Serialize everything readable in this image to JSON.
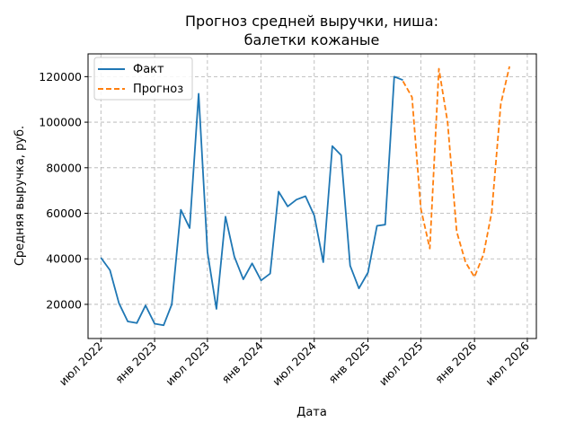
{
  "chart_data": {
    "type": "line",
    "title_lines": [
      "Прогноз средней выручки, ниша:",
      "балетки кожаные"
    ],
    "xlabel": "Дата",
    "ylabel": "Средняя выручка, руб.",
    "xlim": [
      "2022-05-18",
      "2026-08-01"
    ],
    "ylim": [
      5000,
      130000
    ],
    "x_ticks": [
      {
        "date": "2022-07-01",
        "label": "июл 2022"
      },
      {
        "date": "2023-01-01",
        "label": "янв 2023"
      },
      {
        "date": "2023-07-01",
        "label": "июл 2023"
      },
      {
        "date": "2024-01-01",
        "label": "янв 2024"
      },
      {
        "date": "2024-07-01",
        "label": "июл 2024"
      },
      {
        "date": "2025-01-01",
        "label": "янв 2025"
      },
      {
        "date": "2025-07-01",
        "label": "июл 2025"
      },
      {
        "date": "2026-01-01",
        "label": "янв 2026"
      },
      {
        "date": "2026-07-01",
        "label": "июл 2026"
      }
    ],
    "y_ticks": [
      20000,
      40000,
      60000,
      80000,
      100000,
      120000
    ],
    "grid": true,
    "legend_position": "top-left",
    "series": [
      {
        "name": "Факт",
        "style": "solid",
        "color": "#1f77b4",
        "points": [
          [
            "2022-07-01",
            40500
          ],
          [
            "2022-08-01",
            35000
          ],
          [
            "2022-09-01",
            20500
          ],
          [
            "2022-10-01",
            12500
          ],
          [
            "2022-11-01",
            11800
          ],
          [
            "2022-12-01",
            19500
          ],
          [
            "2023-01-01",
            11500
          ],
          [
            "2023-02-01",
            10800
          ],
          [
            "2023-03-01",
            20000
          ],
          [
            "2023-04-01",
            61500
          ],
          [
            "2023-05-01",
            53500
          ],
          [
            "2023-06-01",
            112500
          ],
          [
            "2023-07-01",
            43000
          ],
          [
            "2023-08-01",
            18000
          ],
          [
            "2023-09-01",
            58500
          ],
          [
            "2023-10-01",
            41000
          ],
          [
            "2023-11-01",
            31000
          ],
          [
            "2023-12-01",
            38000
          ],
          [
            "2024-01-01",
            30500
          ],
          [
            "2024-02-01",
            33500
          ],
          [
            "2024-03-01",
            69500
          ],
          [
            "2024-04-01",
            63000
          ],
          [
            "2024-05-01",
            66000
          ],
          [
            "2024-06-01",
            67500
          ],
          [
            "2024-07-01",
            59000
          ],
          [
            "2024-08-01",
            38500
          ],
          [
            "2024-09-01",
            89500
          ],
          [
            "2024-10-01",
            85500
          ],
          [
            "2024-11-01",
            37000
          ],
          [
            "2024-12-01",
            27000
          ],
          [
            "2025-01-01",
            34000
          ],
          [
            "2025-02-01",
            54500
          ],
          [
            "2025-03-01",
            55000
          ],
          [
            "2025-04-01",
            120000
          ],
          [
            "2025-05-01",
            118500
          ]
        ]
      },
      {
        "name": "Прогноз",
        "style": "dashed",
        "color": "#ff7f0e",
        "points": [
          [
            "2025-05-01",
            118000
          ],
          [
            "2025-06-01",
            111000
          ],
          [
            "2025-07-01",
            62000
          ],
          [
            "2025-08-01",
            44500
          ],
          [
            "2025-09-01",
            123500
          ],
          [
            "2025-10-01",
            100000
          ],
          [
            "2025-11-01",
            52000
          ],
          [
            "2025-12-01",
            38500
          ],
          [
            "2026-01-01",
            32000
          ],
          [
            "2026-02-01",
            42000
          ],
          [
            "2026-03-01",
            60500
          ],
          [
            "2026-04-01",
            108000
          ],
          [
            "2026-05-01",
            124500
          ]
        ]
      }
    ]
  }
}
